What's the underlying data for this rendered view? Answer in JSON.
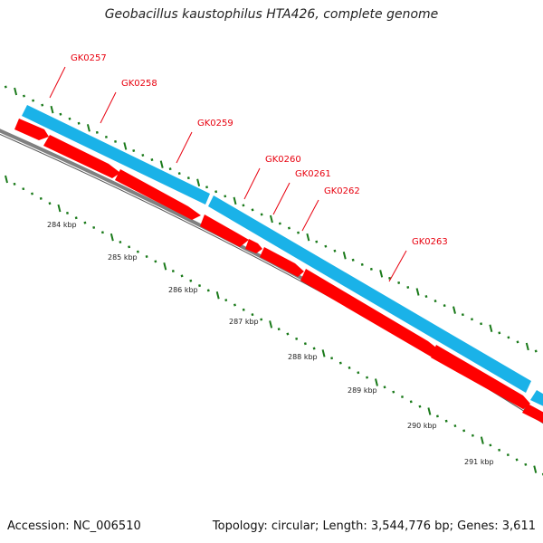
{
  "title": "Geobacillus kaustophilus HTA426, complete genome",
  "colors": {
    "title_text": "#222222",
    "backbone": "#808080",
    "forward_strand": "#1ab2e8",
    "reverse_strand": "#ff0000",
    "tick": "#1a7a1a",
    "gene_label": "#e8000e",
    "scale_label": "#222222"
  },
  "scale_labels": [
    "284 kbp",
    "285 kbp",
    "286 kbp",
    "287 kbp",
    "288 kbp",
    "289 kbp",
    "290 kbp",
    "291 kbp"
  ],
  "gene_labels": [
    "GK0257",
    "GK0258",
    "GK0259",
    "GK0260",
    "GK0261",
    "GK0262",
    "GK0263"
  ],
  "footer": {
    "accession": "Accession: NC_006510",
    "summary": "Topology: circular; Length: 3,544,776 bp; Genes: 3,611"
  }
}
